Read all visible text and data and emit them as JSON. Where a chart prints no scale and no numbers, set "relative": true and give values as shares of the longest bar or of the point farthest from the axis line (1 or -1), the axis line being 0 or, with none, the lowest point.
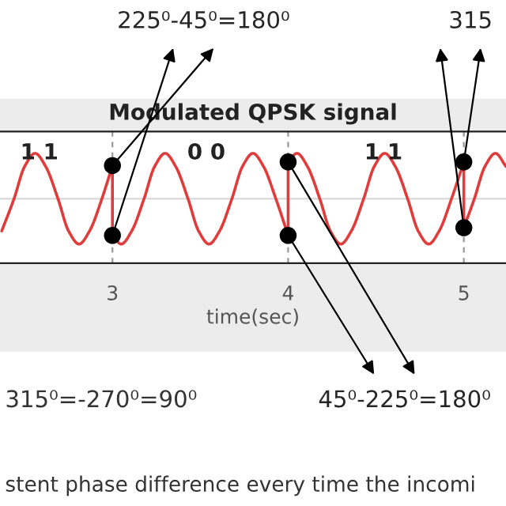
{
  "chart_data": {
    "type": "line",
    "relative": true,
    "title": "Modulated QPSK signal",
    "xlabel": "time(sec)",
    "xlim": [
      2.36,
      5.24
    ],
    "xticks": [
      3,
      4,
      5
    ],
    "grid": "x",
    "tick_labels": "x",
    "ref_lines": [
      {
        "axis": "y",
        "value": 0,
        "color": "#d9d9d9"
      }
    ],
    "annotations": [
      {
        "text": "225⁰-45⁰=180⁰",
        "x": 3,
        "y": 0.73
      },
      {
        "text": "315",
        "x": 5,
        "y": 0.81
      },
      {
        "text": "45⁰-225⁰=180⁰",
        "x": 4,
        "y": -0.81
      },
      "1 1",
      "0 0",
      "1 1",
      "315⁰=-270⁰=90⁰",
      "stent phase difference every time the incomi"
    ],
    "series": [
      {
        "color": "#e03c3c",
        "x": [
          2.37,
          2.44,
          2.5,
          2.56,
          2.62,
          2.69,
          2.75,
          2.81,
          2.87,
          2.94,
          3.0,
          3.0,
          3.05,
          3.11,
          3.18,
          3.24,
          3.3,
          3.36,
          3.43,
          3.49,
          3.55,
          3.61,
          3.68,
          3.74,
          3.8,
          3.86,
          3.93,
          4.0,
          4.0,
          4.05,
          4.11,
          4.18,
          4.24,
          4.3,
          4.36,
          4.43,
          4.49,
          4.55,
          4.61,
          4.68,
          4.74,
          4.8,
          4.86,
          4.93,
          5.0,
          5.0,
          5.06,
          5.12,
          5.18,
          5.24
        ],
        "values": [
          -0.71,
          0,
          0.71,
          1,
          0.71,
          0,
          -0.71,
          -1,
          -0.71,
          0,
          0.73,
          -0.81,
          -1,
          -0.71,
          0,
          0.71,
          1,
          0.71,
          0,
          -0.71,
          -1,
          -0.71,
          0,
          0.71,
          1,
          0.71,
          0,
          -0.81,
          0.81,
          1,
          0.71,
          0,
          -0.71,
          -1,
          -0.71,
          0,
          0.71,
          1,
          0.71,
          0,
          -0.71,
          -1,
          -0.71,
          0,
          0.81,
          -0.64,
          0,
          0.71,
          1,
          0.71
        ]
      },
      {
        "type": "scatter",
        "color": "#000000",
        "marker": "circle",
        "x": [
          3,
          3,
          4,
          4,
          5,
          5
        ],
        "values": [
          0.73,
          -0.81,
          -0.81,
          0.81,
          0.81,
          -0.64
        ]
      }
    ]
  }
}
